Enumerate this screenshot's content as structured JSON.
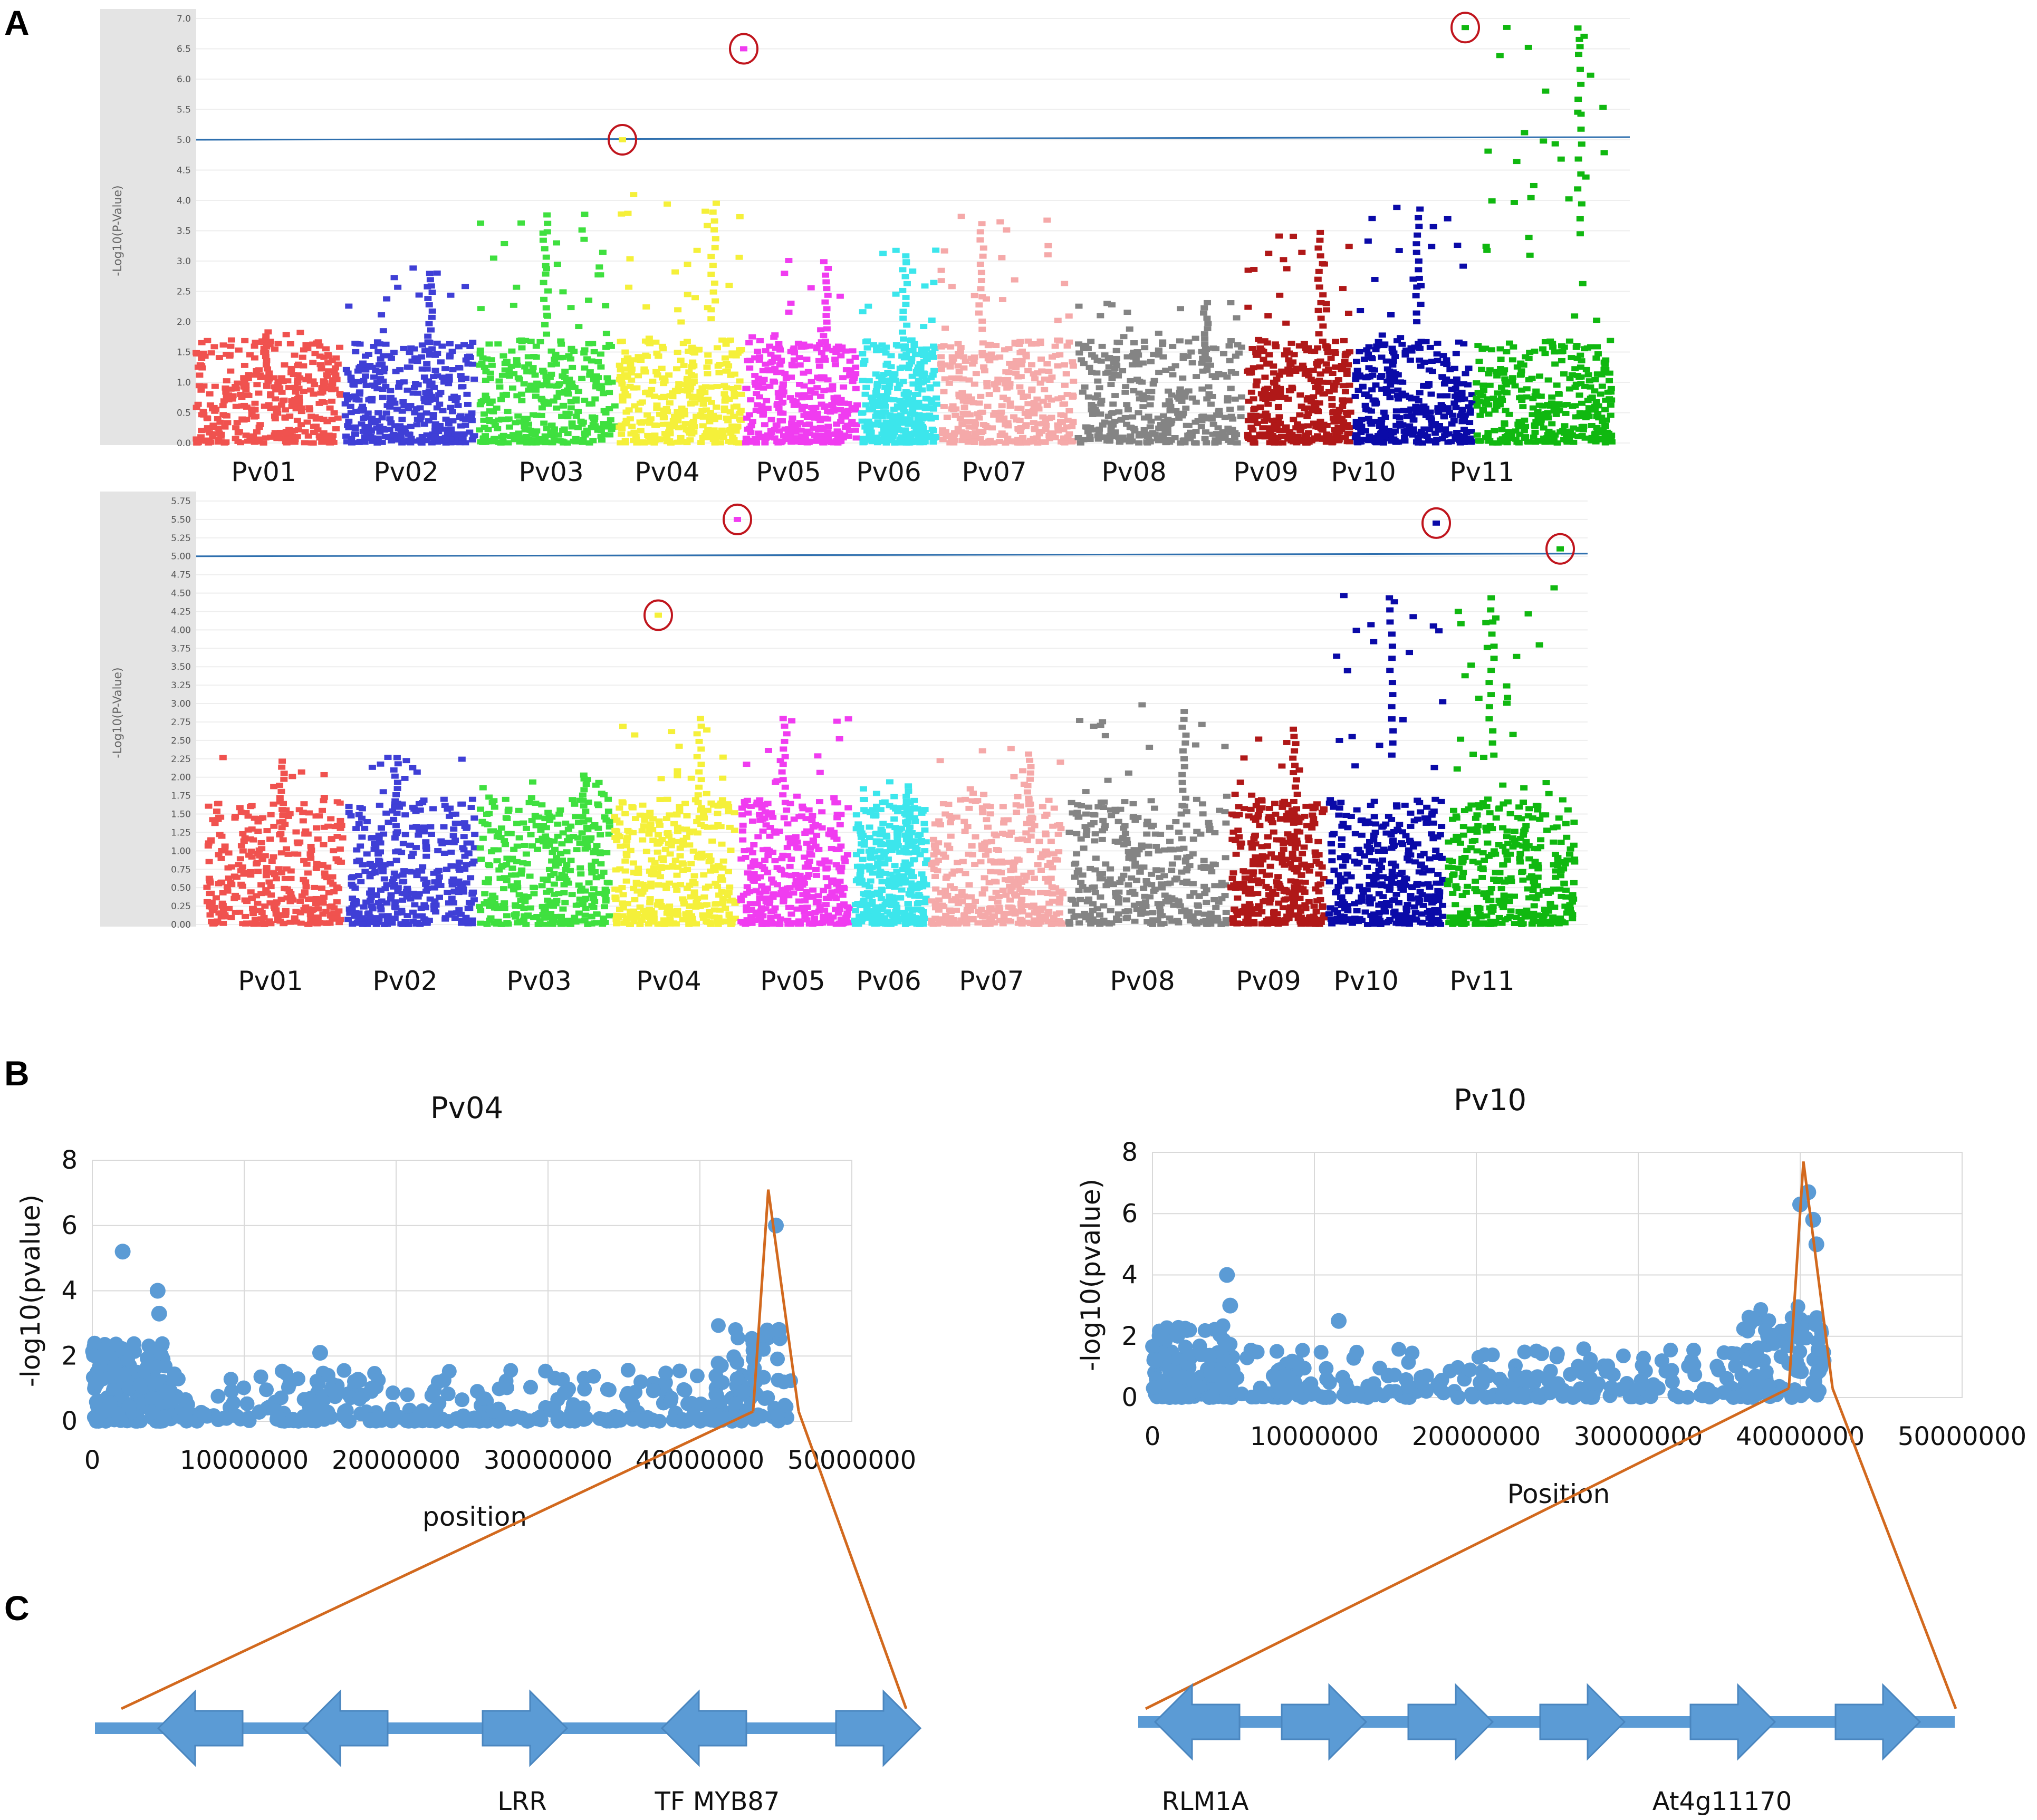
{
  "panel_letters": {
    "a": "A",
    "b": "B",
    "c": "C"
  },
  "colors": {
    "chromosomes": [
      "#f0524f",
      "#3f3fd6",
      "#3fe03f",
      "#f5f03a",
      "#f03cf0",
      "#3ce6ec",
      "#f5a9a9",
      "#848484",
      "#b01818",
      "#0a0aa8",
      "#10b810"
    ],
    "threshold": "#2e6fae",
    "circle": "#c0151d",
    "scatter_point": "#5b9bd5",
    "zoom_line": "#d2691e",
    "gene_arrow": "#5b9bd5",
    "grid": "#d9d9d9",
    "plot_bg_strip": "#e4e4e4"
  },
  "chart_data": [
    {
      "id": "manhattan_top",
      "type": "scatter",
      "title": "",
      "ylabel": "-Log10(P-Value)",
      "ylim": [
        0,
        7
      ],
      "yticks": [
        "0.0",
        "0.5",
        "1.0",
        "1.5",
        "2.0",
        "2.5",
        "3.0",
        "3.5",
        "4.0",
        "4.5",
        "5.0",
        "5.5",
        "6.0",
        "6.5",
        "7.0"
      ],
      "ytick_values": [
        0,
        0.5,
        1,
        1.5,
        2,
        2.5,
        3,
        3.5,
        4,
        4.5,
        5,
        5.5,
        6,
        6.5,
        7
      ],
      "threshold": 5.0,
      "chromosomes": [
        "Pv01",
        "Pv02",
        "Pv03",
        "Pv04",
        "Pv05",
        "Pv06",
        "Pv07",
        "Pv08",
        "Pv09",
        "Pv10",
        "Pv11"
      ],
      "chrom_peaks": [
        1.9,
        2.9,
        3.9,
        4.1,
        3.1,
        3.2,
        3.75,
        2.4,
        3.6,
        4.0,
        6.9
      ],
      "highlighted_snps": [
        {
          "chrom": "Pv04",
          "value": 5.0
        },
        {
          "chrom": "Pv05",
          "value": 6.5
        },
        {
          "chrom": "Pv11",
          "value": 6.85
        }
      ]
    },
    {
      "id": "manhattan_bottom",
      "type": "scatter",
      "title": "",
      "ylabel": "-Log10(P-Value)",
      "ylim": [
        0,
        5.75
      ],
      "yticks": [
        "0.00",
        "0.25",
        "0.50",
        "0.75",
        "1.00",
        "1.25",
        "1.50",
        "1.75",
        "2.00",
        "2.25",
        "2.50",
        "2.75",
        "3.00",
        "3.25",
        "3.50",
        "3.75",
        "4.00",
        "4.25",
        "4.50",
        "4.75",
        "5.00",
        "5.25",
        "5.50",
        "5.75"
      ],
      "ytick_values": [
        0,
        0.25,
        0.5,
        0.75,
        1,
        1.25,
        1.5,
        1.75,
        2,
        2.25,
        2.5,
        2.75,
        3,
        3.25,
        3.5,
        3.75,
        4,
        4.25,
        4.5,
        4.75,
        5,
        5.25,
        5.5,
        5.75
      ],
      "threshold": 5.0,
      "chromosomes": [
        "Pv01",
        "Pv02",
        "Pv03",
        "Pv04",
        "Pv05",
        "Pv06",
        "Pv07",
        "Pv08",
        "Pv09",
        "Pv10",
        "Pv11"
      ],
      "chrom_peaks": [
        2.3,
        2.35,
        2.05,
        2.9,
        2.9,
        1.95,
        2.4,
        3.0,
        2.75,
        4.6,
        4.6
      ],
      "highlighted_snps": [
        {
          "chrom": "Pv04",
          "value": 4.2
        },
        {
          "chrom": "Pv05",
          "value": 5.5
        },
        {
          "chrom": "Pv10",
          "value": 5.45
        },
        {
          "chrom": "Pv11",
          "value": 5.1
        }
      ]
    },
    {
      "id": "scatter_pv04",
      "type": "scatter",
      "title": "Pv04",
      "xlabel": "position",
      "ylabel": "-log10(pvalue)",
      "xlim": [
        0,
        50000000
      ],
      "ylim": [
        0,
        8
      ],
      "xticks": [
        "0",
        "10000000",
        "20000000",
        "30000000",
        "40000000",
        "50000000"
      ],
      "xtick_values": [
        0,
        10000000,
        20000000,
        30000000,
        40000000,
        50000000
      ],
      "yticks": [
        "0",
        "2",
        "4",
        "6",
        "8"
      ],
      "ytick_values": [
        0,
        2,
        4,
        6,
        8
      ],
      "peak": {
        "x": 45000000,
        "y": 6.0
      },
      "notable_points": [
        {
          "x": 2000000,
          "y": 5.2
        },
        {
          "x": 4300000,
          "y": 4.0
        },
        {
          "x": 4400000,
          "y": 3.3
        },
        {
          "x": 15000000,
          "y": 2.1
        },
        {
          "x": 45200000,
          "y": 2.8
        }
      ],
      "zoom_triangle": {
        "x_left": 43500000,
        "x_peak": 44500000,
        "x_right": 46500000,
        "y_peak": 7.1
      }
    },
    {
      "id": "scatter_pv10",
      "type": "scatter",
      "title": "Pv10",
      "xlabel": "Position",
      "ylabel": "-log10(pvalue)",
      "xlim": [
        0,
        50000000
      ],
      "ylim": [
        0,
        8
      ],
      "xticks": [
        "0",
        "10000000",
        "20000000",
        "30000000",
        "40000000",
        "50000000"
      ],
      "xtick_values": [
        0,
        10000000,
        20000000,
        30000000,
        40000000,
        50000000
      ],
      "yticks": [
        "0",
        "2",
        "4",
        "6",
        "8"
      ],
      "ytick_values": [
        0,
        2,
        4,
        6,
        8
      ],
      "peak": {
        "x": 40500000,
        "y": 6.7
      },
      "notable_points": [
        {
          "x": 4600000,
          "y": 4.0
        },
        {
          "x": 4800000,
          "y": 3.0
        },
        {
          "x": 11500000,
          "y": 2.5
        },
        {
          "x": 40000000,
          "y": 6.3
        },
        {
          "x": 40800000,
          "y": 5.8
        },
        {
          "x": 41000000,
          "y": 5.0
        }
      ],
      "zoom_triangle": {
        "x_left": 39300000,
        "x_peak": 40200000,
        "x_right": 42000000,
        "y_peak": 7.7
      }
    }
  ],
  "gene_tracks": [
    {
      "id": "track_pv04",
      "arrows": [
        "left",
        "left",
        "right",
        "left",
        "right"
      ],
      "labels": [
        {
          "text": "LRR",
          "arrow_index": 2
        },
        {
          "text": "TF  MYB87",
          "arrow_index": 3
        }
      ]
    },
    {
      "id": "track_pv10",
      "arrows": [
        "left",
        "right",
        "right",
        "right",
        "right",
        "right"
      ],
      "labels": [
        {
          "text": "RLM1A",
          "arrow_index": 0
        },
        {
          "text": "At4g11170",
          "arrow_index": 4
        }
      ]
    }
  ]
}
